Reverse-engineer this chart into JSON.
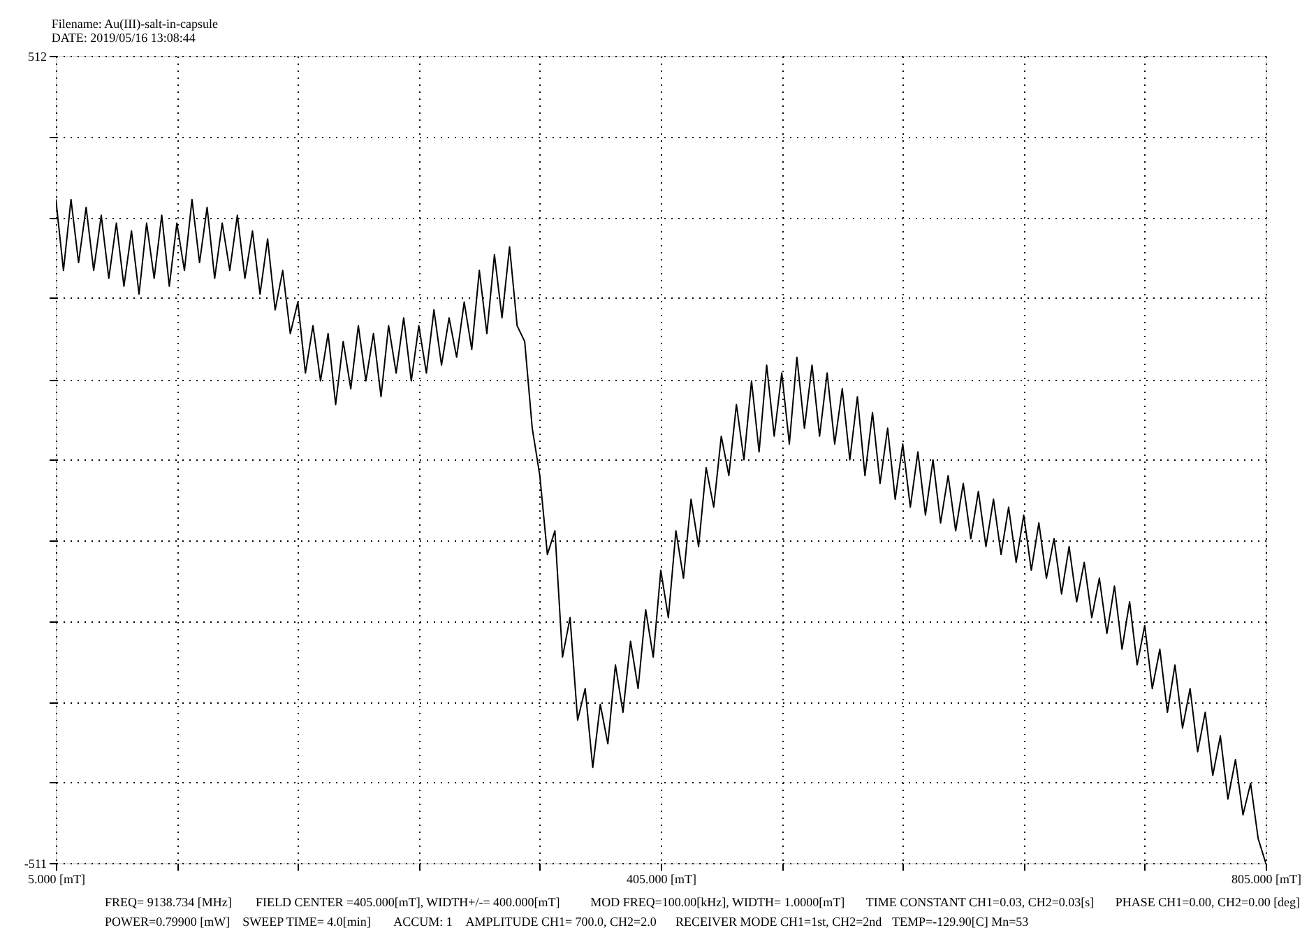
{
  "chart_data": {
    "type": "line",
    "title": "Filename: Au(III)-salt-in-capsule",
    "subtitle": "DATE: 2019/05/16 13:08:44",
    "annotations": [
      "FREQ= 9138.734 [MHz]",
      "FIELD CENTER =405.000[mT], WIDTH+/-= 400.000[mT]",
      "MOD FREQ=100.00[kHz], WIDTH= 1.0000[mT]",
      "TIME CONSTANT CH1=0.03, CH2=0.03[s]",
      "PHASE CH1=0.00, CH2=0.00 [deg]",
      "POWER=0.79900 [mW]",
      "SWEEP TIME= 4.0[min]",
      "ACCUM: 1",
      "AMPLITUDE CH1= 700.0, CH2=2.0",
      "RECEIVER MODE CH1=1st, CH2=2nd",
      "TEMP=-129.90[C] Mn=53"
    ],
    "xlim": [
      5,
      805
    ],
    "xticks": [
      {
        "value": 5,
        "label": "5.000 [mT]"
      },
      {
        "value": 85,
        "label": null
      },
      {
        "value": 165,
        "label": null
      },
      {
        "value": 245,
        "label": null
      },
      {
        "value": 325,
        "label": null
      },
      {
        "value": 405,
        "label": "405.000 [mT]"
      },
      {
        "value": 485,
        "label": null
      },
      {
        "value": 565,
        "label": null
      },
      {
        "value": 645,
        "label": null
      },
      {
        "value": 725,
        "label": null
      },
      {
        "value": 805,
        "label": "805.000 [mT]"
      }
    ],
    "ylim": [
      -511,
      512
    ],
    "yticks": [
      -511,
      {
        "value": -409,
        "label": null
      },
      {
        "value": -307,
        "label": null
      },
      {
        "value": -205,
        "label": null
      },
      {
        "value": -102,
        "label": null
      },
      {
        "value": 0,
        "label": null
      },
      {
        "value": 102,
        "label": null
      },
      {
        "value": 205,
        "label": null
      },
      {
        "value": 307,
        "label": null
      },
      {
        "value": 410,
        "label": null
      },
      512
    ],
    "grid": true,
    "x": [
      5,
      10,
      15,
      20,
      25,
      30,
      35,
      40,
      45,
      50,
      55,
      60,
      65,
      70,
      75,
      80,
      85,
      90,
      95,
      100,
      105,
      110,
      115,
      120,
      125,
      130,
      135,
      140,
      145,
      150,
      155,
      160,
      165,
      170,
      175,
      180,
      185,
      190,
      195,
      200,
      205,
      210,
      215,
      220,
      225,
      230,
      235,
      240,
      245,
      250,
      255,
      260,
      265,
      270,
      275,
      280,
      285,
      290,
      295,
      300,
      305,
      310,
      315,
      320,
      325,
      330,
      335,
      340,
      345,
      350,
      355,
      360,
      365,
      370,
      375,
      380,
      385,
      390,
      395,
      400,
      405,
      410,
      415,
      420,
      425,
      430,
      435,
      440,
      445,
      450,
      455,
      460,
      465,
      470,
      475,
      480,
      485,
      490,
      495,
      500,
      505,
      510,
      515,
      520,
      525,
      530,
      535,
      540,
      545,
      550,
      555,
      560,
      565,
      570,
      575,
      580,
      585,
      590,
      595,
      600,
      605,
      610,
      615,
      620,
      625,
      630,
      635,
      640,
      645,
      650,
      655,
      660,
      665,
      670,
      675,
      680,
      685,
      690,
      695,
      700,
      705,
      710,
      715,
      720,
      725,
      730,
      735,
      740,
      745,
      750,
      755,
      760,
      765,
      770,
      775,
      780,
      785,
      790,
      795,
      800,
      805
    ],
    "series": [
      {
        "color": "#000000",
        "values": [
          330,
          240,
          330,
          250,
          320,
          240,
          310,
          230,
          300,
          220,
          290,
          210,
          300,
          230,
          310,
          220,
          300,
          240,
          330,
          250,
          320,
          230,
          300,
          240,
          310,
          230,
          290,
          210,
          280,
          190,
          240,
          160,
          200,
          110,
          170,
          100,
          160,
          70,
          150,
          90,
          170,
          100,
          160,
          80,
          170,
          110,
          180,
          100,
          170,
          110,
          190,
          120,
          180,
          130,
          200,
          140,
          240,
          160,
          260,
          180,
          270,
          170,
          150,
          40,
          -20,
          -120,
          -90,
          -250,
          -200,
          -330,
          -290,
          -390,
          -310,
          -360,
          -260,
          -320,
          -230,
          -290,
          -190,
          -250,
          -140,
          -200,
          -90,
          -150,
          -50,
          -110,
          -10,
          -60,
          30,
          -20,
          70,
          0,
          100,
          10,
          120,
          30,
          110,
          20,
          130,
          40,
          120,
          30,
          110,
          20,
          90,
          0,
          80,
          -20,
          60,
          -30,
          40,
          -50,
          20,
          -60,
          10,
          -70,
          0,
          -80,
          -20,
          -90,
          -30,
          -100,
          -40,
          -110,
          -50,
          -120,
          -60,
          -130,
          -70,
          -140,
          -80,
          -150,
          -100,
          -170,
          -110,
          -180,
          -130,
          -200,
          -150,
          -220,
          -160,
          -240,
          -180,
          -260,
          -210,
          -290,
          -240,
          -320,
          -260,
          -340,
          -290,
          -370,
          -320,
          -400,
          -350,
          -430,
          -380,
          -450,
          -410,
          -480,
          -511
        ]
      }
    ]
  }
}
